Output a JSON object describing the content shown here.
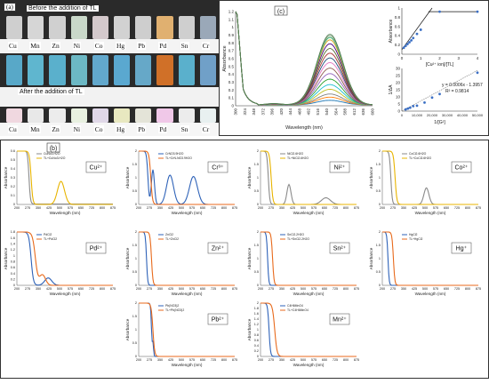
{
  "panel_a": {
    "letter": "(a)",
    "caption_before": "Before the addition of TL",
    "caption_after": "After the addition of TL",
    "metals": [
      "Cu",
      "Mn",
      "Zn",
      "Ni",
      "Co",
      "Hg",
      "Pb",
      "Pd",
      "Sn",
      "Cr"
    ],
    "top_colors": [
      "#cfcfcf",
      "#d6d6d6",
      "#d0d0d0",
      "#c9d8c9",
      "#d4c9cc",
      "#d2d2d2",
      "#cecece",
      "#e0b070",
      "#cfcfcf",
      "#9aa8b8"
    ],
    "mid_colors": [
      "#58a8c8",
      "#5fb6cf",
      "#5ab0cc",
      "#6cb8c4",
      "#62a8cc",
      "#5aa8d0",
      "#66a8c8",
      "#d07028",
      "#5ab0cc",
      "#70a0c8"
    ],
    "bottom_colors": [
      "#f0d8e0",
      "#e8e8e8",
      "#ececec",
      "#e8f0e0",
      "#e0d8e8",
      "#e8e8c0",
      "#e4e4d8",
      "#f0c8e8",
      "#ececec",
      "#e8f0f0"
    ]
  },
  "chart_data": [
    {
      "id": "c_main",
      "panel_letter": "(c)",
      "type": "line",
      "ylabel": "Absorbance",
      "xlabel": "Wavelength (nm)",
      "x_ticks": [
        "300",
        "324",
        "348",
        "372",
        "396",
        "420",
        "444",
        "468",
        "492",
        "516",
        "540",
        "564",
        "588",
        "612",
        "636",
        "660"
      ],
      "y_ticks": [
        "0",
        "0.1",
        "0.2",
        "0.3",
        "0.4",
        "0.5",
        "0.6",
        "0.7",
        "0.8",
        "0.9",
        "1",
        "1.1",
        "1.2"
      ],
      "ylim": [
        0,
        1.2
      ],
      "xlim": [
        300,
        660
      ],
      "peak_wavelength": 548,
      "series_peaks": [
        0.06,
        0.1,
        0.14,
        0.2,
        0.26,
        0.33,
        0.4,
        0.47,
        0.54,
        0.6,
        0.66,
        0.72,
        0.78,
        0.83,
        0.86,
        0.88,
        0.9
      ],
      "colors": [
        "#1f77b4",
        "#ff7f0e",
        "#7f7f7f",
        "#bcbd22",
        "#17becf",
        "#2ca02c",
        "#9467bd",
        "#8c564b",
        "#e377c2",
        "#1f4e79",
        "#a33",
        "#556b2f",
        "#4b0082",
        "#d4a017",
        "#3a6",
        "#8fb08f",
        "#4d7a4d"
      ]
    },
    {
      "id": "c_job",
      "type": "line",
      "ylabel": "Absorbance",
      "xlabel": "[Cu²⁺ ion]/[TL]",
      "x_ticks": [
        "0",
        "1",
        "2",
        "3",
        "4"
      ],
      "y_ticks": [
        "0",
        "0.2",
        "0.4",
        "0.6",
        "0.8",
        "1"
      ],
      "xlim": [
        0,
        4
      ],
      "ylim": [
        0,
        1
      ],
      "points": [
        [
          0.1,
          0.14
        ],
        [
          0.2,
          0.18
        ],
        [
          0.3,
          0.22
        ],
        [
          0.4,
          0.26
        ],
        [
          0.5,
          0.3
        ],
        [
          0.6,
          0.35
        ],
        [
          0.8,
          0.44
        ],
        [
          1,
          0.53
        ],
        [
          2,
          0.92
        ],
        [
          4,
          0.92
        ]
      ],
      "line1": [
        [
          0,
          0.1
        ],
        [
          1.6,
          1.0
        ]
      ],
      "line2": [
        [
          1.4,
          0.92
        ],
        [
          4,
          0.92
        ]
      ]
    },
    {
      "id": "c_bh",
      "type": "scatter",
      "ylabel": "1/ΔA",
      "xlabel": "1/[G²]",
      "x_ticks": [
        "0",
        "10,000",
        "20,000",
        "30,000",
        "40,000",
        "50,000"
      ],
      "y_ticks": [
        "0",
        "5",
        "10",
        "15",
        "20",
        "25",
        "30"
      ],
      "xlim": [
        0,
        50000
      ],
      "ylim": [
        0,
        30
      ],
      "points": [
        [
          2500,
          1.2
        ],
        [
          4000,
          1.8
        ],
        [
          5500,
          2.4
        ],
        [
          7500,
          3.5
        ],
        [
          10000,
          3.8
        ],
        [
          15000,
          6.0
        ],
        [
          20000,
          9.5
        ],
        [
          25000,
          12.0
        ],
        [
          50000,
          27.0
        ]
      ],
      "fit": [
        [
          0,
          -1.3957
        ],
        [
          50000,
          28.6
        ]
      ],
      "equation": "y = 0.0006x - 1.3957",
      "r2": "R² = 0.9814"
    },
    {
      "id": "cu",
      "type": "line",
      "ion": "Cu²⁺",
      "legend": [
        "CuNo3.H2O",
        "TL+CuNo3.H2O"
      ],
      "ylim": [
        0,
        0.6
      ],
      "y_ticks": [
        "0",
        "0.1",
        "0.2",
        "0.3",
        "0.4",
        "0.5",
        "0.6"
      ],
      "x_ticks": [
        "200",
        "275",
        "350",
        "425",
        "500",
        "575",
        "650",
        "725",
        "800",
        "875"
      ],
      "xlabel": "Wavelength (nm)",
      "ylabel": "Absorbance",
      "kind": "cu"
    },
    {
      "id": "cr",
      "type": "line",
      "ion": "Cr³⁺",
      "legend": [
        "CrNO3.9H2O",
        "TL+CrN-NO3.9H2O"
      ],
      "ylim": [
        0,
        2
      ],
      "y_ticks": [
        "0",
        "0.5",
        "1",
        "1.5",
        "2"
      ],
      "x_ticks": [
        "200",
        "275",
        "350",
        "425",
        "500",
        "575",
        "650",
        "725",
        "800",
        "875"
      ],
      "xlabel": "Wavelength (nm)",
      "ylabel": "Absorbance",
      "kind": "cr"
    },
    {
      "id": "ni",
      "type": "line",
      "ion": "Ni²⁺",
      "legend": [
        "NiCl2.6H2O",
        "TL+NiCl2.6H2O"
      ],
      "ylim": [
        0,
        2
      ],
      "y_ticks": [
        "0",
        "0.5",
        "1",
        "1.5",
        "2"
      ],
      "x_ticks": [
        "200",
        "275",
        "350",
        "425",
        "500",
        "575",
        "650",
        "725",
        "800",
        "875"
      ],
      "xlabel": "Wavelength (nm)",
      "ylabel": "Absorbance",
      "kind": "ni"
    },
    {
      "id": "co",
      "type": "line",
      "ion": "Co²⁺",
      "legend": [
        "CoCl2.6H2O",
        "TL+CoCl2.6H2O"
      ],
      "ylim": [
        0,
        2
      ],
      "y_ticks": [
        "0",
        "0.5",
        "1",
        "1.5",
        "2"
      ],
      "x_ticks": [
        "200",
        "275",
        "350",
        "425",
        "500",
        "575",
        "650",
        "725",
        "800",
        "875"
      ],
      "xlabel": "Wavelength (nm)",
      "ylabel": "Absorbance",
      "kind": "co"
    },
    {
      "id": "pd",
      "type": "line",
      "ion": "Pd²⁺",
      "legend": [
        "PdCl2",
        "TL+PdCl2"
      ],
      "ylim": [
        0,
        1.8
      ],
      "y_ticks": [
        "0",
        "0.2",
        "0.4",
        "0.6",
        "0.8",
        "1",
        "1.2",
        "1.4",
        "1.6",
        "1.8"
      ],
      "x_ticks": [
        "200",
        "275",
        "350",
        "425",
        "500",
        "575",
        "650",
        "725",
        "800",
        "875"
      ],
      "xlabel": "Wavelength (nm)",
      "ylabel": "Absorbance",
      "kind": "pd"
    },
    {
      "id": "zn",
      "type": "line",
      "ion": "Zn²⁺",
      "legend": [
        "ZnCl2",
        "TL+ZnCl2"
      ],
      "ylim": [
        0,
        2
      ],
      "y_ticks": [
        "0",
        "0.5",
        "1",
        "1.5",
        "2"
      ],
      "x_ticks": [
        "200",
        "275",
        "350",
        "425",
        "500",
        "575",
        "650",
        "725",
        "800",
        "875"
      ],
      "xlabel": "Wavelength (nm)",
      "ylabel": "Absorbance",
      "kind": "zn"
    },
    {
      "id": "sn",
      "type": "line",
      "ion": "Sn²⁺",
      "legend": [
        "SnCl2.2H2O",
        "TL+SnCl2.2H2O"
      ],
      "ylim": [
        0,
        2
      ],
      "y_ticks": [
        "0",
        "0.5",
        "1",
        "1.5",
        "2"
      ],
      "x_ticks": [
        "200",
        "275",
        "350",
        "425",
        "500",
        "575",
        "650",
        "725",
        "800",
        "875"
      ],
      "xlabel": "Wavelength (nm)",
      "ylabel": "Absorbance",
      "kind": "sn"
    },
    {
      "id": "hg",
      "type": "line",
      "ion": "Hg⁺",
      "legend": [
        "HgCl2",
        "TL+HgCl2"
      ],
      "ylim": [
        0,
        2
      ],
      "y_ticks": [
        "0",
        "0.5",
        "1",
        "1.5",
        "2"
      ],
      "x_ticks": [
        "200",
        "275",
        "350",
        "425",
        "500",
        "575",
        "650",
        "725",
        "800",
        "875"
      ],
      "xlabel": "Wavelength (nm)",
      "ylabel": "Absorbance",
      "kind": "hg"
    },
    {
      "id": "pb",
      "type": "line",
      "ion": "Pb²⁺",
      "legend": [
        "Pb(NO3)2",
        "TL+Pb(NO3)2"
      ],
      "ylim": [
        0,
        2
      ],
      "y_ticks": [
        "0",
        "0.5",
        "1",
        "1.5",
        "2"
      ],
      "x_ticks": [
        "200",
        "275",
        "350",
        "425",
        "500",
        "575",
        "650",
        "725",
        "800",
        "875"
      ],
      "xlabel": "Wavelength (nm)",
      "ylabel": "Absorbance",
      "kind": "pb"
    },
    {
      "id": "mn",
      "type": "line",
      "ion": "Mn²⁺",
      "legend": [
        "C4H6MnO4",
        "TL+C4H6MnO4"
      ],
      "ylim": [
        0,
        2
      ],
      "y_ticks": [
        "0",
        "0.2",
        "0.4",
        "0.6",
        "0.8",
        "1",
        "1.2",
        "1.4",
        "1.6",
        "1.8",
        "2"
      ],
      "x_ticks": [
        "200",
        "275",
        "350",
        "425",
        "500",
        "575",
        "650",
        "725",
        "800",
        "875"
      ],
      "xlabel": "Wavelength (nm)",
      "ylabel": "Absorbance",
      "kind": "mn"
    }
  ],
  "panel_b_letter": "(b)",
  "colors": {
    "metal_series": "#8a8a8a",
    "tl_series": "#e8b400",
    "blue": "#2e62b8",
    "orange": "#e86a1c"
  }
}
